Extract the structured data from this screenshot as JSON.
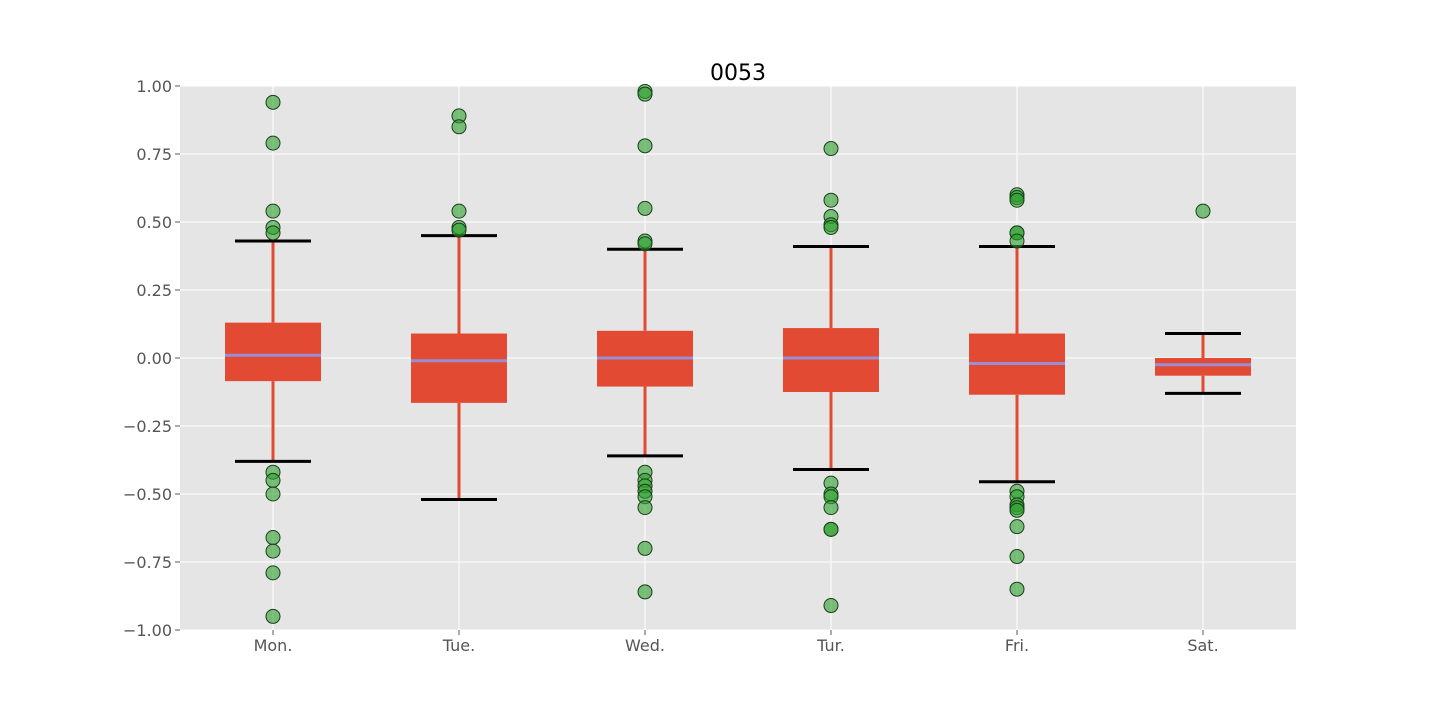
{
  "chart_data": {
    "type": "box",
    "title": "0053",
    "xlabel": "",
    "ylabel": "",
    "ylim": [
      -1.0,
      1.0
    ],
    "yticks": [
      "1.00",
      "0.75",
      "0.50",
      "0.25",
      "0.00",
      "−0.25",
      "−0.50",
      "−0.75",
      "−1.00"
    ],
    "ytick_values": [
      1.0,
      0.75,
      0.5,
      0.25,
      0.0,
      -0.25,
      -0.5,
      -0.75,
      -1.0
    ],
    "categories": [
      "Mon.",
      "Tue.",
      "Wed.",
      "Tur.",
      "Fri.",
      "Sat."
    ],
    "grid": true,
    "colors": {
      "background": "#e5e5e5",
      "grid": "#ffffff",
      "box": "#e24a33",
      "median": "#988ed5",
      "cap": "#000000",
      "outlier": "#2ca02c",
      "outlier_edge": "#1a3d1a"
    },
    "boxes": [
      {
        "category": "Mon.",
        "whisker_low": -0.38,
        "q1": -0.085,
        "median": 0.01,
        "q3": 0.13,
        "whisker_high": 0.43,
        "outliers": [
          0.94,
          0.79,
          0.54,
          0.48,
          0.46,
          -0.42,
          -0.45,
          -0.5,
          -0.66,
          -0.71,
          -0.79,
          -0.95
        ]
      },
      {
        "category": "Tue.",
        "whisker_low": -0.52,
        "q1": -0.165,
        "median": -0.01,
        "q3": 0.09,
        "whisker_high": 0.45,
        "outliers": [
          0.89,
          0.85,
          0.54,
          0.48,
          0.47
        ]
      },
      {
        "category": "Wed.",
        "whisker_low": -0.36,
        "q1": -0.105,
        "median": 0.0,
        "q3": 0.1,
        "whisker_high": 0.4,
        "outliers": [
          0.98,
          0.97,
          0.78,
          0.55,
          0.43,
          0.42,
          -0.42,
          -0.45,
          -0.47,
          -0.49,
          -0.51,
          -0.55,
          -0.7,
          -0.86
        ]
      },
      {
        "category": "Tur.",
        "whisker_low": -0.41,
        "q1": -0.125,
        "median": 0.0,
        "q3": 0.11,
        "whisker_high": 0.41,
        "outliers": [
          0.77,
          0.58,
          0.52,
          0.49,
          0.48,
          -0.46,
          -0.5,
          -0.51,
          -0.55,
          -0.63,
          -0.63,
          -0.91
        ]
      },
      {
        "category": "Fri.",
        "whisker_low": -0.455,
        "q1": -0.135,
        "median": -0.02,
        "q3": 0.09,
        "whisker_high": 0.41,
        "outliers": [
          0.6,
          0.59,
          0.58,
          0.46,
          0.46,
          0.43,
          -0.49,
          -0.51,
          -0.54,
          -0.55,
          -0.56,
          -0.62,
          -0.73,
          -0.85
        ]
      },
      {
        "category": "Sat.",
        "whisker_low": -0.13,
        "q1": -0.065,
        "median": -0.025,
        "q3": 0.0,
        "whisker_high": 0.09,
        "outliers": [
          0.54
        ]
      }
    ]
  }
}
